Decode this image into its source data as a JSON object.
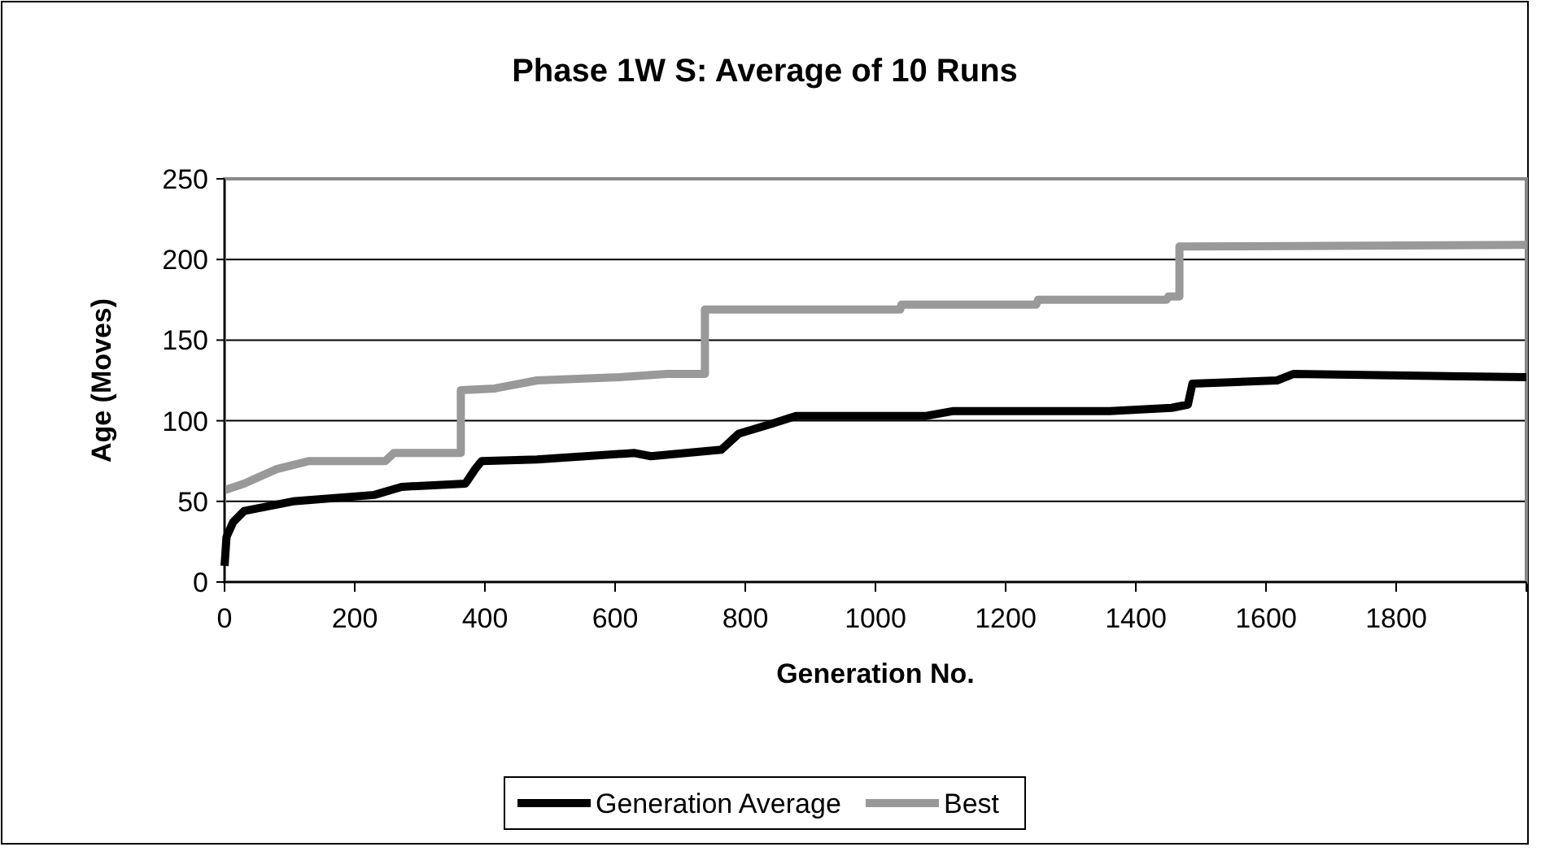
{
  "chart_data": {
    "type": "line",
    "title": "Phase 1W S: Average of 10 Runs",
    "xlabel": "Generation No.",
    "ylabel": "Age (Moves)",
    "xlim": [
      0,
      2000
    ],
    "xticks": [
      0,
      200,
      400,
      600,
      800,
      1000,
      1200,
      1400,
      1600,
      1800,
      {
        "value": 2000,
        "label": null
      }
    ],
    "ylim": [
      0,
      250
    ],
    "yticks": [
      0,
      50,
      100,
      150,
      200,
      250
    ],
    "grid": "y",
    "legend": "bottom",
    "line_style": "solid",
    "series": [
      {
        "name": "Generation Average",
        "color": "#000000",
        "x": [
          0,
          3,
          13,
          30,
          105,
          230,
          272,
          370,
          385,
          395,
          480,
          630,
          655,
          763,
          790,
          840,
          878,
          1078,
          1120,
          1360,
          1455,
          1480,
          1487,
          1617,
          1642,
          2000
        ],
        "values": [
          10,
          28,
          37,
          44,
          50,
          54,
          59,
          61,
          70,
          75,
          76,
          80,
          78,
          82,
          92,
          98,
          103,
          103,
          106,
          106,
          108,
          110,
          123,
          125,
          129,
          127
        ]
      },
      {
        "name": "Best",
        "color": "#999999",
        "x": [
          0,
          30,
          80,
          130,
          247,
          260,
          363,
          363,
          415,
          480,
          607,
          680,
          738,
          738,
          1038,
          1040,
          1247,
          1250,
          1447,
          1450,
          1467,
          1467,
          2000
        ],
        "values": [
          57,
          61,
          70,
          75,
          75,
          80,
          80,
          119,
          120,
          125,
          127,
          129,
          129,
          169,
          169,
          172,
          172,
          175,
          175,
          177,
          177,
          208,
          209
        ]
      }
    ]
  }
}
